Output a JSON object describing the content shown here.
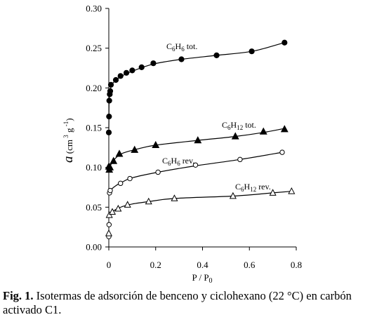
{
  "chart_data": {
    "type": "scatter",
    "xlabel": "P / P",
    "xlabel_sub": "0",
    "ylabel": "a",
    "ylabel_unit": "(cm",
    "ylabel_unit_sup1": "3",
    "ylabel_unit_g": " g",
    "ylabel_unit_sup2": "-1",
    "ylabel_unit_close": ")",
    "xlim": [
      0,
      0.8
    ],
    "ylim": [
      0,
      0.3
    ],
    "xticks": [
      0,
      0.2,
      0.4,
      0.6,
      0.8
    ],
    "xtick_labels": [
      "0",
      "0.2",
      "0.4",
      "0.6",
      "0.8"
    ],
    "yticks": [
      0,
      0.05,
      0.1,
      0.15,
      0.2,
      0.25,
      0.3
    ],
    "ytick_labels": [
      "0.00",
      "0.05",
      "0.10",
      "0.15",
      "0.20",
      "0.25",
      "0.30"
    ],
    "grid": false,
    "series": [
      {
        "label_main": "C",
        "label_s1": "6",
        "label_mid": "H",
        "label_s2": "6",
        "label_suffix": " tot.",
        "marker": "filled-circle",
        "points": [
          [
            0.0,
            0.144
          ],
          [
            0.001,
            0.164
          ],
          [
            0.002,
            0.184
          ],
          [
            0.004,
            0.192
          ],
          [
            0.006,
            0.196
          ],
          [
            0.009,
            0.204
          ],
          [
            0.03,
            0.21
          ],
          [
            0.05,
            0.215
          ],
          [
            0.075,
            0.219
          ],
          [
            0.1,
            0.222
          ],
          [
            0.14,
            0.226
          ],
          [
            0.19,
            0.231
          ],
          [
            0.31,
            0.236
          ],
          [
            0.46,
            0.241
          ],
          [
            0.61,
            0.246
          ],
          [
            0.75,
            0.257
          ]
        ]
      },
      {
        "label_main": "C",
        "label_s1": "6",
        "label_mid": "H",
        "label_s2": "12",
        "label_suffix": " tot.",
        "marker": "filled-triangle",
        "points": [
          [
            0.0,
            0.101
          ],
          [
            0.002,
            0.097
          ],
          [
            0.005,
            0.1
          ],
          [
            0.02,
            0.108
          ],
          [
            0.045,
            0.117
          ],
          [
            0.11,
            0.122
          ],
          [
            0.2,
            0.128
          ],
          [
            0.38,
            0.134
          ],
          [
            0.54,
            0.139
          ],
          [
            0.66,
            0.145
          ],
          [
            0.75,
            0.148
          ]
        ]
      },
      {
        "label_main": "C",
        "label_s1": "6",
        "label_mid": "H",
        "label_s2": "6",
        "label_suffix": " rev.",
        "marker": "open-circle",
        "points": [
          [
            0.0,
            0.013
          ],
          [
            0.001,
            0.028
          ],
          [
            0.003,
            0.068
          ],
          [
            0.006,
            0.071
          ],
          [
            0.05,
            0.08
          ],
          [
            0.09,
            0.086
          ],
          [
            0.21,
            0.094
          ],
          [
            0.37,
            0.103
          ],
          [
            0.56,
            0.11
          ],
          [
            0.74,
            0.119
          ]
        ]
      },
      {
        "label_main": "C",
        "label_s1": "6",
        "label_mid": "H",
        "label_s2": "12",
        "label_suffix": " rev.",
        "marker": "open-triangle",
        "points": [
          [
            0.0,
            0.017
          ],
          [
            0.002,
            0.04
          ],
          [
            0.015,
            0.044
          ],
          [
            0.04,
            0.048
          ],
          [
            0.08,
            0.053
          ],
          [
            0.17,
            0.057
          ],
          [
            0.28,
            0.061
          ],
          [
            0.53,
            0.064
          ],
          [
            0.7,
            0.068
          ],
          [
            0.78,
            0.07
          ]
        ]
      }
    ],
    "curves": [
      [
        [
          0.0,
          0.148
        ],
        [
          0.001,
          0.18
        ],
        [
          0.003,
          0.193
        ],
        [
          0.008,
          0.2
        ],
        [
          0.02,
          0.207
        ],
        [
          0.05,
          0.214
        ],
        [
          0.1,
          0.221
        ],
        [
          0.19,
          0.23
        ],
        [
          0.31,
          0.236
        ],
        [
          0.46,
          0.241
        ],
        [
          0.61,
          0.246
        ],
        [
          0.75,
          0.257
        ]
      ],
      [
        [
          0.0,
          0.099
        ],
        [
          0.01,
          0.104
        ],
        [
          0.03,
          0.112
        ],
        [
          0.06,
          0.118
        ],
        [
          0.12,
          0.123
        ],
        [
          0.2,
          0.128
        ],
        [
          0.38,
          0.134
        ],
        [
          0.54,
          0.139
        ],
        [
          0.66,
          0.144
        ],
        [
          0.75,
          0.149
        ]
      ],
      [
        [
          0.0,
          0.066
        ],
        [
          0.01,
          0.072
        ],
        [
          0.03,
          0.077
        ],
        [
          0.06,
          0.082
        ],
        [
          0.1,
          0.087
        ],
        [
          0.21,
          0.094
        ],
        [
          0.37,
          0.102
        ],
        [
          0.56,
          0.11
        ],
        [
          0.74,
          0.119
        ]
      ],
      [
        [
          0.0,
          0.037
        ],
        [
          0.01,
          0.043
        ],
        [
          0.03,
          0.047
        ],
        [
          0.06,
          0.051
        ],
        [
          0.1,
          0.054
        ],
        [
          0.17,
          0.057
        ],
        [
          0.28,
          0.061
        ],
        [
          0.53,
          0.064
        ],
        [
          0.7,
          0.068
        ],
        [
          0.78,
          0.07
        ]
      ]
    ]
  },
  "caption": {
    "label": "Fig. 1.",
    "text": " Isotermas de adsorción de benceno y ciclohexano (22 °C) en carbón activado C1."
  }
}
